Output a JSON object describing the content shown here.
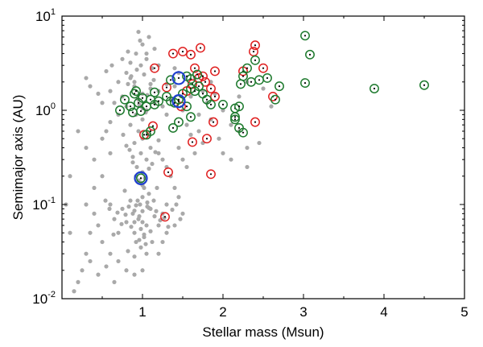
{
  "chart_data": {
    "type": "scatter",
    "title": "",
    "xlabel": "Stellar mass (Msun)",
    "ylabel": "Semimajor axis (AU)",
    "xlim": [
      0.0,
      5.0
    ],
    "ylim": [
      0.01,
      10
    ],
    "yscale": "log",
    "grid": false,
    "legend": "none",
    "x_ticks": [
      {
        "value": 1,
        "label": "1"
      },
      {
        "value": 2,
        "label": "2"
      },
      {
        "value": 3,
        "label": "3"
      },
      {
        "value": 4,
        "label": "4"
      },
      {
        "value": 5,
        "label": "5"
      }
    ],
    "y_ticks": [
      {
        "value": 0.01,
        "base": "10",
        "exp": "-2"
      },
      {
        "value": 0.1,
        "base": "10",
        "exp": "-1"
      },
      {
        "value": 1,
        "base": "10",
        "exp": "0"
      },
      {
        "value": 10,
        "base": "10",
        "exp": "1"
      }
    ],
    "colors": {
      "background_points": "#a9a9a9",
      "red_circles": "#e02020",
      "green_circles": "#1e7a2e",
      "blue_circles": "#1f3fd0",
      "axis": "#000000"
    },
    "series": [
      {
        "style": "gray-dots",
        "points": [
          [
            1.0,
            0.085
          ],
          [
            0.95,
            0.07
          ],
          [
            1.05,
            0.06
          ],
          [
            0.9,
            0.05
          ],
          [
            1.1,
            0.09
          ],
          [
            0.85,
            0.11
          ],
          [
            1.0,
            0.12
          ],
          [
            0.8,
            0.065
          ],
          [
            1.15,
            0.075
          ],
          [
            0.92,
            0.04
          ],
          [
            1.02,
            0.045
          ],
          [
            0.88,
            0.08
          ],
          [
            0.97,
            0.1
          ],
          [
            1.08,
            0.13
          ],
          [
            0.75,
            0.09
          ],
          [
            1.2,
            0.06
          ],
          [
            0.7,
            0.05
          ],
          [
            1.25,
            0.08
          ],
          [
            0.65,
            0.07
          ],
          [
            0.6,
            0.1
          ],
          [
            1.3,
            0.05
          ],
          [
            0.98,
            0.035
          ],
          [
            1.05,
            0.03
          ],
          [
            0.9,
            0.028
          ],
          [
            0.82,
            0.032
          ],
          [
            1.12,
            0.04
          ],
          [
            0.78,
            0.14
          ],
          [
            1.18,
            0.15
          ],
          [
            0.95,
            0.18
          ],
          [
            1.0,
            0.22
          ],
          [
            0.93,
            0.25
          ],
          [
            1.05,
            0.3
          ],
          [
            0.88,
            0.28
          ],
          [
            0.98,
            0.35
          ],
          [
            1.1,
            0.4
          ],
          [
            0.9,
            0.45
          ],
          [
            1.0,
            0.5
          ],
          [
            0.95,
            0.6
          ],
          [
            1.08,
            0.55
          ],
          [
            0.85,
            0.7
          ],
          [
            1.0,
            0.8
          ],
          [
            0.92,
            0.9
          ],
          [
            1.05,
            1.0
          ],
          [
            0.8,
            1.1
          ],
          [
            1.15,
            1.2
          ],
          [
            0.95,
            1.3
          ],
          [
            1.0,
            1.5
          ],
          [
            1.1,
            1.7
          ],
          [
            0.9,
            2.0
          ],
          [
            1.02,
            2.4
          ],
          [
            0.98,
            3.0
          ],
          [
            1.05,
            3.5
          ],
          [
            0.92,
            4.0
          ],
          [
            1.0,
            5.0
          ],
          [
            1.08,
            6.0
          ],
          [
            0.95,
            6.8
          ],
          [
            1.12,
            2.8
          ],
          [
            0.85,
            2.2
          ],
          [
            1.2,
            1.6
          ],
          [
            0.75,
            1.4
          ],
          [
            1.25,
            1.1
          ],
          [
            0.7,
            0.9
          ],
          [
            0.65,
            1.2
          ],
          [
            0.6,
            0.75
          ],
          [
            0.55,
            0.6
          ],
          [
            1.3,
            0.9
          ],
          [
            1.35,
            1.3
          ],
          [
            1.4,
            1.8
          ],
          [
            1.45,
            2.5
          ],
          [
            1.5,
            1.0
          ],
          [
            1.55,
            0.7
          ],
          [
            1.6,
            1.4
          ],
          [
            1.65,
            2.2
          ],
          [
            1.7,
            0.9
          ],
          [
            1.75,
            1.6
          ],
          [
            1.8,
            1.2
          ],
          [
            1.85,
            2.0
          ],
          [
            1.9,
            1.5
          ],
          [
            2.0,
            1.0
          ],
          [
            2.1,
            0.7
          ],
          [
            2.2,
            0.6
          ],
          [
            2.3,
            0.4
          ],
          [
            2.1,
            0.3
          ],
          [
            2.0,
            0.35
          ],
          [
            1.95,
            0.5
          ],
          [
            1.3,
            0.25
          ],
          [
            1.25,
            0.3
          ],
          [
            1.2,
            0.35
          ],
          [
            1.35,
            0.2
          ],
          [
            1.4,
            0.15
          ],
          [
            1.45,
            0.12
          ],
          [
            1.3,
            0.1
          ],
          [
            1.25,
            0.04
          ],
          [
            1.2,
            0.03
          ],
          [
            1.4,
            0.06
          ],
          [
            1.5,
            0.08
          ],
          [
            0.5,
            0.04
          ],
          [
            0.45,
            0.06
          ],
          [
            0.4,
            0.08
          ],
          [
            0.35,
            0.05
          ],
          [
            0.3,
            0.03
          ],
          [
            0.25,
            0.02
          ],
          [
            0.2,
            0.015
          ],
          [
            0.15,
            0.012
          ],
          [
            0.3,
            0.1
          ],
          [
            0.4,
            0.15
          ],
          [
            0.5,
            0.2
          ],
          [
            0.35,
            0.025
          ],
          [
            0.45,
            0.018
          ],
          [
            0.55,
            0.022
          ],
          [
            0.6,
            0.03
          ],
          [
            0.7,
            0.025
          ],
          [
            0.8,
            0.02
          ],
          [
            0.9,
            0.018
          ],
          [
            1.0,
            0.02
          ],
          [
            0.65,
            0.015
          ],
          [
            0.3,
            0.4
          ],
          [
            0.5,
            0.5
          ],
          [
            0.4,
            0.3
          ],
          [
            0.6,
            0.35
          ],
          [
            0.2,
            0.6
          ],
          [
            0.1,
            0.2
          ],
          [
            0.05,
            0.1
          ],
          [
            0.1,
            0.05
          ],
          [
            2.3,
            0.25
          ],
          [
            2.45,
            0.45
          ],
          [
            2.2,
            1.4
          ],
          [
            2.3,
            2.0
          ],
          [
            2.5,
            1.7
          ],
          [
            2.6,
            1.1
          ],
          [
            1.85,
            0.8
          ],
          [
            1.75,
            0.45
          ],
          [
            1.6,
            0.55
          ],
          [
            1.55,
            0.25
          ],
          [
            1.45,
            0.4
          ],
          [
            1.5,
            0.3
          ],
          [
            1.65,
            0.35
          ],
          [
            1.7,
            0.6
          ],
          [
            1.3,
            1.9
          ],
          [
            1.4,
            2.8
          ],
          [
            1.2,
            3.0
          ],
          [
            1.15,
            4.5
          ],
          [
            1.05,
            4.0
          ],
          [
            0.97,
            5.5
          ],
          [
            0.93,
            2.7
          ],
          [
            0.85,
            3.2
          ],
          [
            0.8,
            2.5
          ],
          [
            0.7,
            2.0
          ],
          [
            0.6,
            1.6
          ],
          [
            0.5,
            1.2
          ],
          [
            0.45,
            1.5
          ],
          [
            0.35,
            1.8
          ],
          [
            0.3,
            2.2
          ],
          [
            0.55,
            2.6
          ],
          [
            0.62,
            3.0
          ],
          [
            0.75,
            3.5
          ],
          [
            0.82,
            4.2
          ],
          [
            1.02,
            0.15
          ],
          [
            0.98,
            0.17
          ],
          [
            1.03,
            0.19
          ],
          [
            0.96,
            0.075
          ],
          [
            1.06,
            0.095
          ],
          [
            0.9,
            0.065
          ],
          [
            1.1,
            0.052
          ],
          [
            0.86,
            0.058
          ],
          [
            1.14,
            0.11
          ],
          [
            0.83,
            0.095
          ],
          [
            1.17,
            0.085
          ],
          [
            0.79,
            0.078
          ],
          [
            1.22,
            0.068
          ],
          [
            0.74,
            0.062
          ],
          [
            1.27,
            0.072
          ],
          [
            0.69,
            0.082
          ],
          [
            1.32,
            0.058
          ],
          [
            0.64,
            0.048
          ],
          [
            1.37,
            0.088
          ],
          [
            0.59,
            0.09
          ],
          [
            1.42,
            0.1
          ],
          [
            0.54,
            0.11
          ],
          [
            1.47,
            0.07
          ],
          [
            1.0,
            0.16
          ],
          [
            0.92,
            0.2
          ],
          [
            1.08,
            0.24
          ],
          [
            0.88,
            0.32
          ],
          [
            1.12,
            0.27
          ],
          [
            0.84,
            0.38
          ],
          [
            1.16,
            0.36
          ],
          [
            0.8,
            0.42
          ],
          [
            1.2,
            0.48
          ],
          [
            0.76,
            0.55
          ],
          [
            1.0,
            1.05
          ],
          [
            0.96,
            1.15
          ],
          [
            1.04,
            0.95
          ],
          [
            0.94,
            1.35
          ],
          [
            1.06,
            1.45
          ],
          [
            0.9,
            1.8
          ],
          [
            1.1,
            1.9
          ],
          [
            0.86,
            2.3
          ],
          [
            1.14,
            2.1
          ],
          [
            0.82,
            1.9
          ],
          [
            1.0,
            0.065
          ],
          [
            0.98,
            0.055
          ],
          [
            1.02,
            0.048
          ],
          [
            0.96,
            0.042
          ],
          [
            1.04,
            0.038
          ],
          [
            0.94,
            0.11
          ],
          [
            1.06,
            0.105
          ],
          [
            0.92,
            0.098
          ],
          [
            1.08,
            0.092
          ],
          [
            0.9,
            0.086
          ]
        ]
      },
      {
        "style": "red-circles",
        "points": [
          [
            1.15,
            2.8
          ],
          [
            1.38,
            4.0
          ],
          [
            1.5,
            4.2
          ],
          [
            1.6,
            3.9
          ],
          [
            1.72,
            4.6
          ],
          [
            1.65,
            2.8
          ],
          [
            1.7,
            2.2
          ],
          [
            1.62,
            1.9
          ],
          [
            1.78,
            2.0
          ],
          [
            1.85,
            1.7
          ],
          [
            1.9,
            2.6
          ],
          [
            2.25,
            2.6
          ],
          [
            2.4,
            4.9
          ],
          [
            2.38,
            4.2
          ],
          [
            2.5,
            2.8
          ],
          [
            2.62,
            1.4
          ],
          [
            1.88,
            0.75
          ],
          [
            2.4,
            0.75
          ],
          [
            1.62,
            0.46
          ],
          [
            1.8,
            0.5
          ],
          [
            1.85,
            0.21
          ],
          [
            1.32,
            0.22
          ],
          [
            1.28,
            0.074
          ],
          [
            1.02,
            0.55
          ],
          [
            1.13,
            0.68
          ],
          [
            1.55,
            1.6
          ],
          [
            1.48,
            1.1
          ],
          [
            1.3,
            1.75
          ],
          [
            1.9,
            1.4
          ],
          [
            1.75,
            2.3
          ]
        ]
      },
      {
        "style": "green-circles",
        "points": [
          [
            0.72,
            1.0
          ],
          [
            0.78,
            1.3
          ],
          [
            0.85,
            1.1
          ],
          [
            0.9,
            1.5
          ],
          [
            0.95,
            1.2
          ],
          [
            1.0,
            1.35
          ],
          [
            1.05,
            1.1
          ],
          [
            1.1,
            1.3
          ],
          [
            1.15,
            1.15
          ],
          [
            1.2,
            1.25
          ],
          [
            0.88,
            0.95
          ],
          [
            0.98,
            0.98
          ],
          [
            1.3,
            1.4
          ],
          [
            1.35,
            1.25
          ],
          [
            1.4,
            1.2
          ],
          [
            1.45,
            1.3
          ],
          [
            1.5,
            1.5
          ],
          [
            1.55,
            1.1
          ],
          [
            1.6,
            1.7
          ],
          [
            1.65,
            1.6
          ],
          [
            1.7,
            1.8
          ],
          [
            1.75,
            1.5
          ],
          [
            1.8,
            1.3
          ],
          [
            1.85,
            1.15
          ],
          [
            1.68,
            2.4
          ],
          [
            1.6,
            2.15
          ],
          [
            1.55,
            2.3
          ],
          [
            2.0,
            1.15
          ],
          [
            2.15,
            1.05
          ],
          [
            2.2,
            1.1
          ],
          [
            2.22,
            1.9
          ],
          [
            2.35,
            2.0
          ],
          [
            2.45,
            2.1
          ],
          [
            2.55,
            2.2
          ],
          [
            2.3,
            2.8
          ],
          [
            2.4,
            3.4
          ],
          [
            2.65,
            1.3
          ],
          [
            2.7,
            1.8
          ],
          [
            3.02,
            6.2
          ],
          [
            3.08,
            3.9
          ],
          [
            3.02,
            1.95
          ],
          [
            3.88,
            1.7
          ],
          [
            4.5,
            1.85
          ],
          [
            2.15,
            0.8
          ],
          [
            2.2,
            0.65
          ],
          [
            2.25,
            0.58
          ],
          [
            2.15,
            0.85
          ],
          [
            1.6,
            0.85
          ],
          [
            1.45,
            0.75
          ],
          [
            1.38,
            0.65
          ],
          [
            1.1,
            0.6
          ],
          [
            1.05,
            0.55
          ],
          [
            0.92,
            1.6
          ],
          [
            1.15,
            1.55
          ],
          [
            1.35,
            2.1
          ],
          [
            2.25,
            2.3
          ],
          [
            0.98,
            0.19
          ]
        ]
      },
      {
        "style": "blue-circles",
        "points": [
          [
            1.45,
            2.2
          ],
          [
            1.45,
            1.25
          ],
          [
            0.98,
            0.19
          ]
        ]
      }
    ]
  }
}
